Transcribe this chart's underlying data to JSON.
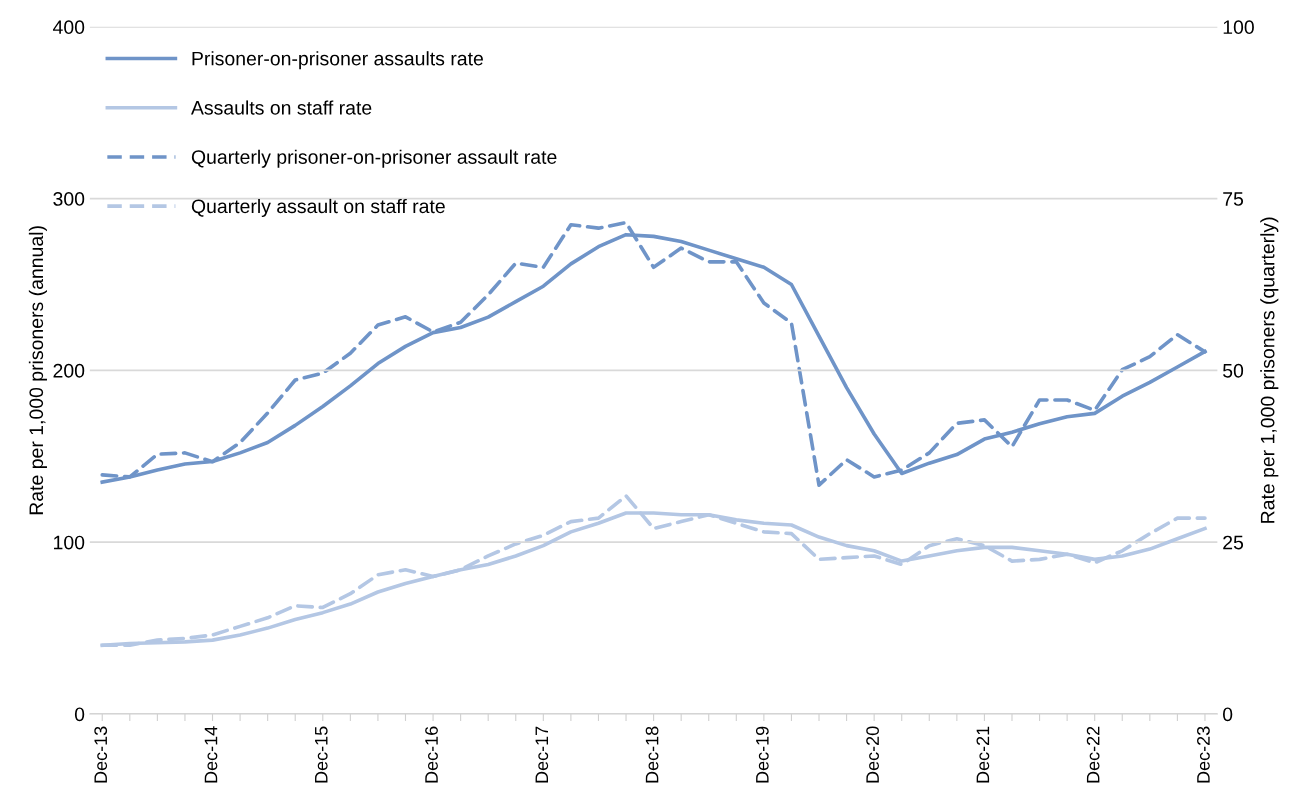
{
  "chart_data": {
    "type": "line",
    "ylabel": "Rate per 1,000 prisoners (annual)",
    "y2label": "Rate per 1,000 prisoners (quarterly)",
    "categories": [
      "Dec-13",
      null,
      null,
      null,
      "Dec-14",
      null,
      null,
      null,
      "Dec-15",
      null,
      null,
      null,
      "Dec-16",
      null,
      null,
      null,
      "Dec-17",
      null,
      null,
      null,
      "Dec-18",
      null,
      null,
      null,
      "Dec-19",
      null,
      null,
      null,
      "Dec-20",
      null,
      null,
      null,
      "Dec-21",
      null,
      null,
      null,
      "Dec-22",
      null,
      null,
      null,
      "Dec-23"
    ],
    "ylim": [
      0,
      400
    ],
    "yticks": [
      0,
      100,
      200,
      300,
      400
    ],
    "y2lim": [
      0,
      100
    ],
    "y2ticks": [
      0,
      25,
      50,
      75,
      100
    ],
    "grid": "y",
    "legend": "top left",
    "series": [
      {
        "name": "Prisoner-on-prisoner assaults rate",
        "color": "#6f94c8",
        "line_style": "solid",
        "values": [
          135,
          138,
          142,
          145.5,
          147,
          152,
          158,
          168,
          179,
          191,
          204,
          214,
          222,
          225,
          231,
          240,
          249,
          262,
          272,
          279,
          278,
          275,
          270,
          265,
          260,
          250,
          220,
          190,
          163,
          140,
          146,
          151,
          160,
          164,
          169,
          173,
          175,
          185,
          193,
          202,
          211
        ]
      },
      {
        "name": "Assaults on staff rate",
        "color": "#b4c7e4",
        "line_style": "solid",
        "values": [
          40,
          41,
          41.5,
          42,
          43,
          46,
          50,
          55,
          59,
          64,
          71,
          76,
          80,
          84,
          87,
          92,
          98,
          106,
          111,
          117,
          117,
          116,
          116,
          113,
          111,
          110,
          103,
          98,
          95,
          89,
          92,
          95,
          97,
          97,
          95,
          93,
          90,
          92,
          96,
          102,
          108
        ]
      },
      {
        "name": "Quarterly prisoner-on-prisoner assault rate",
        "color": "#6f94c8",
        "line_style": "dashed",
        "axis": "y2",
        "values": [
          34.8,
          34.5,
          37.8,
          38,
          36.7,
          39.5,
          43.8,
          48.6,
          49.6,
          52.5,
          56.6,
          57.8,
          55.6,
          57,
          61,
          65.6,
          65,
          71.2,
          70.7,
          71.5,
          65,
          67.8,
          65.8,
          65.8,
          59.8,
          56.9,
          33.3,
          37,
          34.5,
          35.5,
          38,
          42.3,
          42.8,
          38.9,
          45.7,
          45.7,
          44.2,
          50.1,
          52,
          55.2,
          52.7
        ]
      },
      {
        "name": "Quarterly assault on staff rate",
        "color": "#b4c7e4",
        "line_style": "dashed",
        "axis": "y2",
        "values": [
          10,
          10,
          10.75,
          11,
          11.5,
          12.75,
          14,
          15.75,
          15.5,
          17.5,
          20.25,
          21,
          20,
          21,
          23,
          24.75,
          26,
          28,
          28.5,
          31.75,
          27,
          28,
          29,
          27.75,
          26.5,
          26.25,
          22.5,
          22.75,
          23,
          21.75,
          24.5,
          25.5,
          24.5,
          22.25,
          22.5,
          23.25,
          22,
          23.75,
          26.25,
          28.5,
          28.5
        ]
      }
    ]
  }
}
